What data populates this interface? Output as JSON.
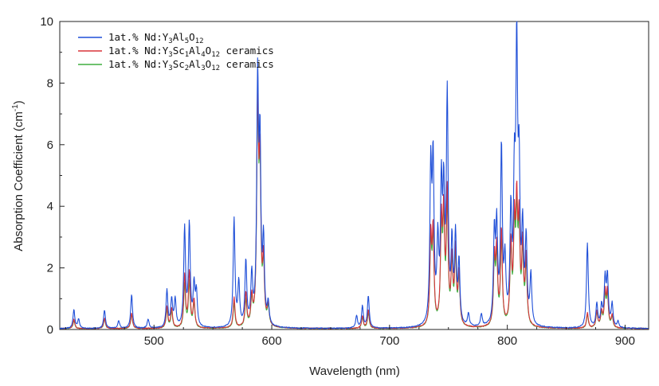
{
  "chart_data": {
    "type": "line",
    "xlabel": "Wavelength (nm)",
    "ylabel_main": "Absorption Coefficient (cm",
    "ylabel_sup": "-1",
    "ylabel_close": ")",
    "xlim": [
      420,
      920
    ],
    "ylim": [
      0,
      10
    ],
    "x_ticks": [
      500,
      600,
      700,
      800,
      900
    ],
    "y_ticks": [
      0,
      2,
      4,
      6,
      8,
      10
    ],
    "grid": false,
    "legend_position": "top-left",
    "series": [
      {
        "name_parts": [
          [
            "1at.% Nd:Y",
            ""
          ],
          [
            "3",
            "sub"
          ],
          [
            "Al",
            ""
          ],
          [
            "5",
            "sub"
          ],
          [
            "O",
            ""
          ],
          [
            "12",
            "sub"
          ]
        ],
        "color": "#1f4fd8",
        "peaks": [
          [
            432,
            0.6
          ],
          [
            436,
            0.3
          ],
          [
            458,
            0.6
          ],
          [
            470,
            0.25
          ],
          [
            481,
            1.1
          ],
          [
            495,
            0.3
          ],
          [
            511,
            1.2
          ],
          [
            515,
            0.9
          ],
          [
            518,
            0.9
          ],
          [
            526,
            3.2
          ],
          [
            530,
            3.3
          ],
          [
            534,
            1.3
          ],
          [
            536,
            1.1
          ],
          [
            568,
            3.5
          ],
          [
            572,
            1.4
          ],
          [
            578,
            2.1
          ],
          [
            583,
            1.6
          ],
          [
            588,
            7.7
          ],
          [
            590,
            5.5
          ],
          [
            593,
            2.6
          ],
          [
            597,
            0.7
          ],
          [
            672,
            0.4
          ],
          [
            677,
            0.7
          ],
          [
            682,
            1.05
          ],
          [
            735,
            4.9
          ],
          [
            737,
            5.1
          ],
          [
            741,
            2.5
          ],
          [
            744,
            4.2
          ],
          [
            746,
            3.9
          ],
          [
            749,
            7.3
          ],
          [
            753,
            2.5
          ],
          [
            756,
            2.8
          ],
          [
            759,
            2.0
          ],
          [
            767,
            0.4
          ],
          [
            778,
            0.4
          ],
          [
            789,
            2.9
          ],
          [
            791,
            3.0
          ],
          [
            795,
            5.7
          ],
          [
            798,
            1.9
          ],
          [
            803,
            3.5
          ],
          [
            806,
            4.2
          ],
          [
            808,
            8.5
          ],
          [
            810,
            4.5
          ],
          [
            813,
            2.9
          ],
          [
            816,
            2.7
          ],
          [
            820,
            1.6
          ],
          [
            868,
            2.75
          ],
          [
            876,
            0.75
          ],
          [
            880,
            0.65
          ],
          [
            883,
            1.5
          ],
          [
            885,
            1.6
          ],
          [
            889,
            0.75
          ],
          [
            894,
            0.2
          ]
        ]
      },
      {
        "name_parts": [
          [
            "1at.% Nd:Y",
            ""
          ],
          [
            "3",
            "sub"
          ],
          [
            "Sc",
            ""
          ],
          [
            "1",
            "sub"
          ],
          [
            "Al",
            ""
          ],
          [
            "4",
            "sub"
          ],
          [
            "O",
            ""
          ],
          [
            "12",
            "sub"
          ],
          [
            " ceramics",
            ""
          ]
        ],
        "color": "#d9333a",
        "peaks": [
          [
            432,
            0.3
          ],
          [
            458,
            0.35
          ],
          [
            481,
            0.5
          ],
          [
            511,
            0.7
          ],
          [
            515,
            0.65
          ],
          [
            526,
            1.7
          ],
          [
            530,
            1.8
          ],
          [
            534,
            0.9
          ],
          [
            568,
            1.0
          ],
          [
            578,
            1.1
          ],
          [
            583,
            0.9
          ],
          [
            588,
            7.1
          ],
          [
            590,
            5.0
          ],
          [
            593,
            2.0
          ],
          [
            597,
            0.7
          ],
          [
            677,
            0.4
          ],
          [
            682,
            0.6
          ],
          [
            735,
            2.8
          ],
          [
            737,
            3.0
          ],
          [
            744,
            3.2
          ],
          [
            746,
            3.4
          ],
          [
            749,
            4.2
          ],
          [
            753,
            2.1
          ],
          [
            756,
            2.4
          ],
          [
            759,
            1.7
          ],
          [
            789,
            2.2
          ],
          [
            791,
            2.4
          ],
          [
            795,
            3.1
          ],
          [
            803,
            2.6
          ],
          [
            806,
            3.1
          ],
          [
            808,
            3.6
          ],
          [
            810,
            3.1
          ],
          [
            813,
            2.5
          ],
          [
            816,
            2.2
          ],
          [
            868,
            0.5
          ],
          [
            876,
            0.55
          ],
          [
            880,
            0.5
          ],
          [
            883,
            1.1
          ],
          [
            885,
            1.15
          ],
          [
            889,
            0.4
          ]
        ]
      },
      {
        "name_parts": [
          [
            "1at.% Nd:Y",
            ""
          ],
          [
            "3",
            "sub"
          ],
          [
            "Sc",
            ""
          ],
          [
            "2",
            "sub"
          ],
          [
            "Al",
            ""
          ],
          [
            "3",
            "sub"
          ],
          [
            "O",
            ""
          ],
          [
            "12",
            "sub"
          ],
          [
            " ceramics",
            ""
          ]
        ],
        "color": "#3fae3f",
        "peaks": [
          [
            432,
            0.25
          ],
          [
            458,
            0.3
          ],
          [
            481,
            0.45
          ],
          [
            511,
            0.6
          ],
          [
            515,
            0.55
          ],
          [
            526,
            1.4
          ],
          [
            530,
            1.5
          ],
          [
            534,
            0.8
          ],
          [
            568,
            0.8
          ],
          [
            578,
            0.9
          ],
          [
            583,
            0.8
          ],
          [
            588,
            7.0
          ],
          [
            590,
            4.8
          ],
          [
            593,
            1.9
          ],
          [
            597,
            0.6
          ],
          [
            677,
            0.35
          ],
          [
            682,
            0.5
          ],
          [
            735,
            2.6
          ],
          [
            737,
            2.8
          ],
          [
            744,
            3.0
          ],
          [
            746,
            3.2
          ],
          [
            749,
            3.8
          ],
          [
            753,
            2.0
          ],
          [
            756,
            2.2
          ],
          [
            759,
            1.6
          ],
          [
            789,
            2.0
          ],
          [
            791,
            2.2
          ],
          [
            795,
            2.8
          ],
          [
            803,
            2.4
          ],
          [
            806,
            2.9
          ],
          [
            808,
            3.3
          ],
          [
            810,
            2.9
          ],
          [
            813,
            2.3
          ],
          [
            816,
            2.0
          ],
          [
            868,
            0.45
          ],
          [
            876,
            0.5
          ],
          [
            880,
            0.45
          ],
          [
            883,
            1.0
          ],
          [
            885,
            1.05
          ],
          [
            889,
            0.35
          ]
        ]
      }
    ]
  }
}
